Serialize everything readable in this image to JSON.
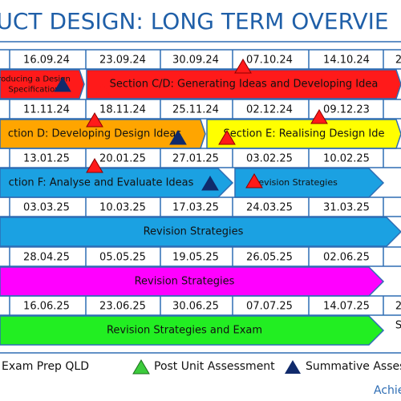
{
  "title": "UCT DESIGN: LONG TERM OVERVIE",
  "rows": [
    {
      "dates": [
        "16.09.24",
        "23.09.24",
        "30.09.24",
        "07.10.24",
        "14.10.24",
        "2"
      ],
      "bars": [
        {
          "lines": [
            "roducing a Design",
            "Specification"
          ]
        },
        {
          "lines": [
            "Section C/D: Generating Ideas and Developing Idea"
          ]
        }
      ]
    },
    {
      "dates": [
        "11.11.24",
        "18.11.24",
        "25.11.24",
        "02.12.24",
        "09.12.23"
      ],
      "bars": [
        {
          "lines": [
            "ction D: Developing Design Ideas"
          ]
        },
        {
          "lines": [
            "Section E: Realising Design Ide"
          ]
        }
      ]
    },
    {
      "dates": [
        "13.01.25",
        "20.01.25",
        "27.01.25",
        "03.02.25",
        "10.02.25"
      ],
      "bars": [
        {
          "lines": [
            "ction F: Analyse and Evaluate Ideas"
          ]
        },
        {
          "lines": [
            "Revision Strategies"
          ]
        }
      ]
    },
    {
      "dates": [
        "03.03.25",
        "10.03.25",
        "17.03.25",
        "24.03.25",
        "31.03.25"
      ],
      "bars": [
        {
          "lines": [
            "Revision Strategies"
          ]
        }
      ]
    },
    {
      "dates": [
        "28.04.25",
        "05.05.25",
        "19.05.25",
        "26.05.25",
        "02.06.25"
      ],
      "bars": [
        {
          "lines": [
            "Revision Strategies"
          ]
        }
      ]
    },
    {
      "dates": [
        "16.06.25",
        "23.06.25",
        "30.06.25",
        "07.07.25",
        "14.07.25",
        "2"
      ],
      "bars": [
        {
          "lines": [
            "Revision Strategies and Exam"
          ]
        }
      ],
      "side": "S"
    }
  ],
  "legend": {
    "exam_prep": "Exam Prep QLD",
    "post_unit": "Post Unit Assessment",
    "summative": "Summative Assess"
  },
  "footer": "Achie"
}
